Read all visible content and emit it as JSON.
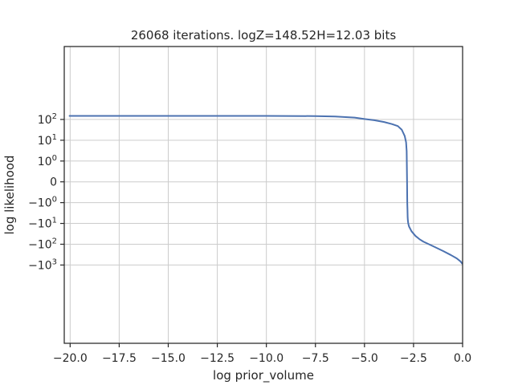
{
  "chart_data": {
    "type": "line",
    "title": "26068 iterations. logZ=148.52H=12.03 bits",
    "xlabel": "log prior_volume",
    "ylabel": "log likelihood",
    "xlim": [
      -20.3,
      0.0
    ],
    "yscale": "symlog",
    "grid": true,
    "legend": "none",
    "x_ticks": [
      {
        "value": -20.0,
        "label": "−20.0"
      },
      {
        "value": -17.5,
        "label": "−17.5"
      },
      {
        "value": -15.0,
        "label": "−15.0"
      },
      {
        "value": -12.5,
        "label": "−12.5"
      },
      {
        "value": -10.0,
        "label": "−10.0"
      },
      {
        "value": -7.5,
        "label": "−7.5"
      },
      {
        "value": -5.0,
        "label": "−5.0"
      },
      {
        "value": -2.5,
        "label": "−2.5"
      },
      {
        "value": 0.0,
        "label": "0.0"
      }
    ],
    "y_ticks": [
      {
        "value": 100,
        "base": "10",
        "exp": "2",
        "sign": ""
      },
      {
        "value": 10,
        "base": "10",
        "exp": "1",
        "sign": ""
      },
      {
        "value": 1,
        "base": "10",
        "exp": "0",
        "sign": ""
      },
      {
        "value": 0,
        "base": "0",
        "exp": "",
        "sign": ""
      },
      {
        "value": -1,
        "base": "10",
        "exp": "0",
        "sign": "−"
      },
      {
        "value": -10,
        "base": "10",
        "exp": "1",
        "sign": "−"
      },
      {
        "value": -100,
        "base": "10",
        "exp": "2",
        "sign": "−"
      },
      {
        "value": -1000,
        "base": "10",
        "exp": "3",
        "sign": "−"
      }
    ],
    "series": [
      {
        "color": "#4c72b0",
        "x": [
          -20.03,
          -15.0,
          -10.0,
          -7.5,
          -6.5,
          -5.5,
          -5.0,
          -4.5,
          -4.0,
          -3.6,
          -3.3,
          -3.1,
          -2.95,
          -2.88,
          -2.85,
          -2.83,
          -2.82,
          -2.81,
          -2.8,
          -2.79,
          -2.77,
          -2.73,
          -2.6,
          -2.4,
          -2.2,
          -2.0,
          -1.5,
          -1.0,
          -0.6,
          -0.3,
          -0.1,
          -0.02
        ],
        "y": [
          148.5,
          148.4,
          148.0,
          145.0,
          138.0,
          123.0,
          105.0,
          92.0,
          75.0,
          60.0,
          48.0,
          32.0,
          16.0,
          8.0,
          3.0,
          0.0,
          -1.0,
          -2.0,
          -5.0,
          -7.0,
          -10.0,
          -14.0,
          -24.0,
          -40.0,
          -57.0,
          -75.0,
          -125.0,
          -210.0,
          -330.0,
          -480.0,
          -680.0,
          -850.0
        ]
      }
    ]
  }
}
